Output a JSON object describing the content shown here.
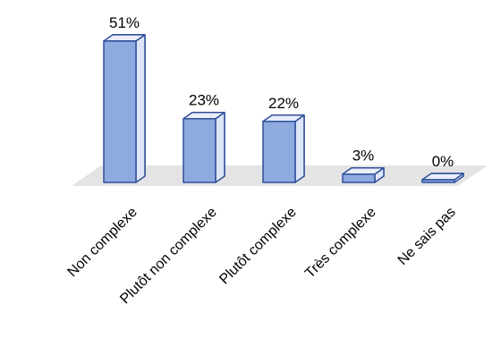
{
  "chart_data": {
    "type": "bar",
    "title": "",
    "xlabel": "",
    "ylabel": "",
    "categories": [
      "Non complexe",
      "Plutôt non complexe",
      "Plutôt complexe",
      "Très complexe",
      "Ne sais pas"
    ],
    "values": [
      51,
      23,
      22,
      3,
      0
    ],
    "data_labels": [
      "51%",
      "23%",
      "22%",
      "3%",
      "0%"
    ],
    "unit": "%",
    "ylim": [
      0,
      51
    ],
    "grid": false,
    "legend": "none",
    "style": "3d-column",
    "colors": {
      "bar_fill": "#8eaadf",
      "bar_side": "#dde6f7",
      "bar_top": "#e9eef9",
      "bar_stroke": "#2f4f9a",
      "floor": "#e4e4e4",
      "text": "#000000"
    }
  }
}
